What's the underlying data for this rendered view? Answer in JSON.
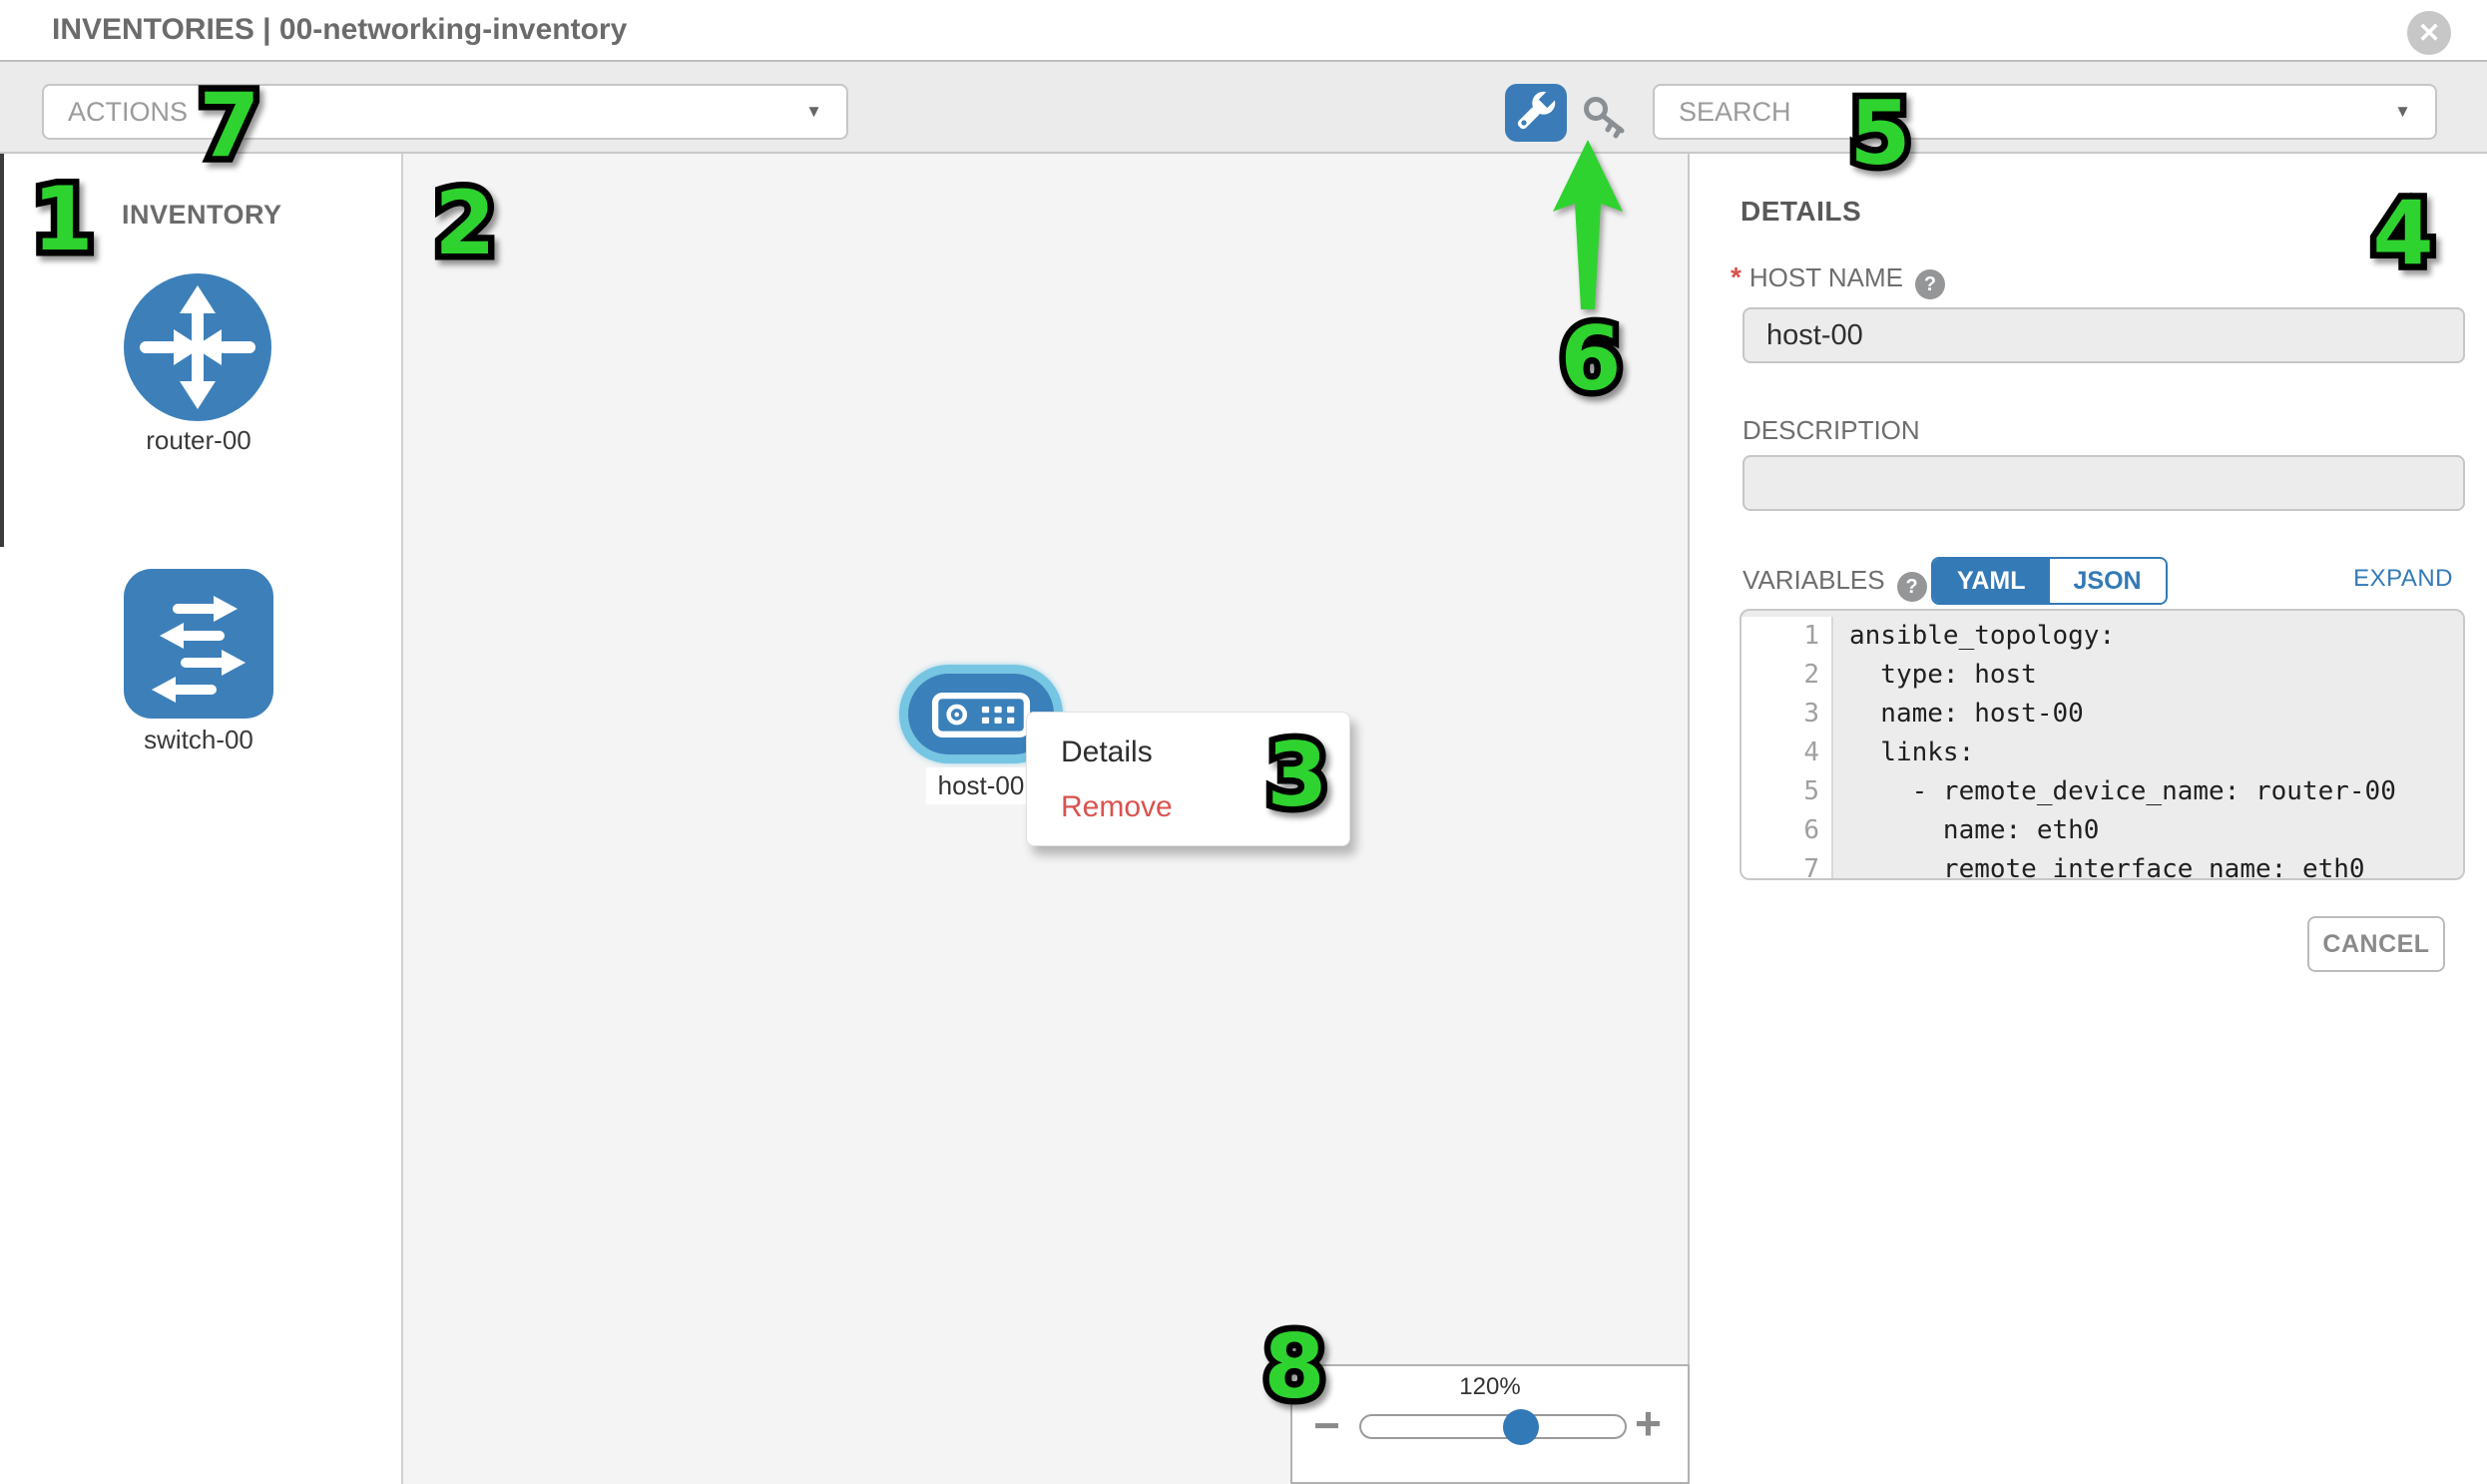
{
  "header": {
    "title": "INVENTORIES | 00-networking-inventory",
    "close_icon": "close"
  },
  "toolbar": {
    "actions_placeholder": "ACTIONS",
    "search_placeholder": "SEARCH"
  },
  "palette": {
    "heading": "INVENTORY",
    "items": [
      {
        "type": "router",
        "label": "router-00"
      },
      {
        "type": "switch",
        "label": "switch-00"
      }
    ]
  },
  "canvas": {
    "node": {
      "type": "host",
      "label": "host-00",
      "selected": true
    },
    "context_menu": {
      "items": [
        {
          "label": "Details"
        },
        {
          "label": "Remove"
        }
      ]
    },
    "zoom_control": {
      "level": "120%",
      "minus_label": "−",
      "plus_label": "+"
    }
  },
  "details": {
    "heading": "DETAILS",
    "fields": {
      "host_name": {
        "required_mark": "*",
        "label": "HOST NAME",
        "help_icon": "?",
        "value": "host-00"
      },
      "description": {
        "label": "DESCRIPTION",
        "value": ""
      }
    },
    "variables": {
      "label": "VARIABLES",
      "help_icon": "?",
      "yaml_label": "YAML",
      "json_label": "JSON",
      "active_toggle": "YAML",
      "expand_label": "EXPAND",
      "editor_lines": [
        {
          "num": "1",
          "text": "ansible_topology:"
        },
        {
          "num": "2",
          "text": "  type: host"
        },
        {
          "num": "3",
          "text": "  name: host-00"
        },
        {
          "num": "4",
          "text": "  links:"
        },
        {
          "num": "5",
          "text": "    - remote_device_name: router-00"
        },
        {
          "num": "6",
          "text": "      name: eth0"
        },
        {
          "num": "7",
          "text": "      remote_interface_name: eth0"
        }
      ]
    },
    "cancel_label": "CANCEL"
  },
  "annotations": {
    "markers": [
      {
        "label": "1"
      },
      {
        "label": "2"
      },
      {
        "label": "3"
      },
      {
        "label": "4"
      },
      {
        "label": "5"
      },
      {
        "label": "6"
      },
      {
        "label": "7"
      },
      {
        "label": "8"
      }
    ],
    "arrow": "green-up-arrow"
  },
  "colors": {
    "accent_blue": "#337ab7",
    "node_blue": "#3a80ba",
    "selected_cyan": "#76c5e2",
    "danger_red": "#d9534f",
    "marker_green": "#2fd32f"
  }
}
